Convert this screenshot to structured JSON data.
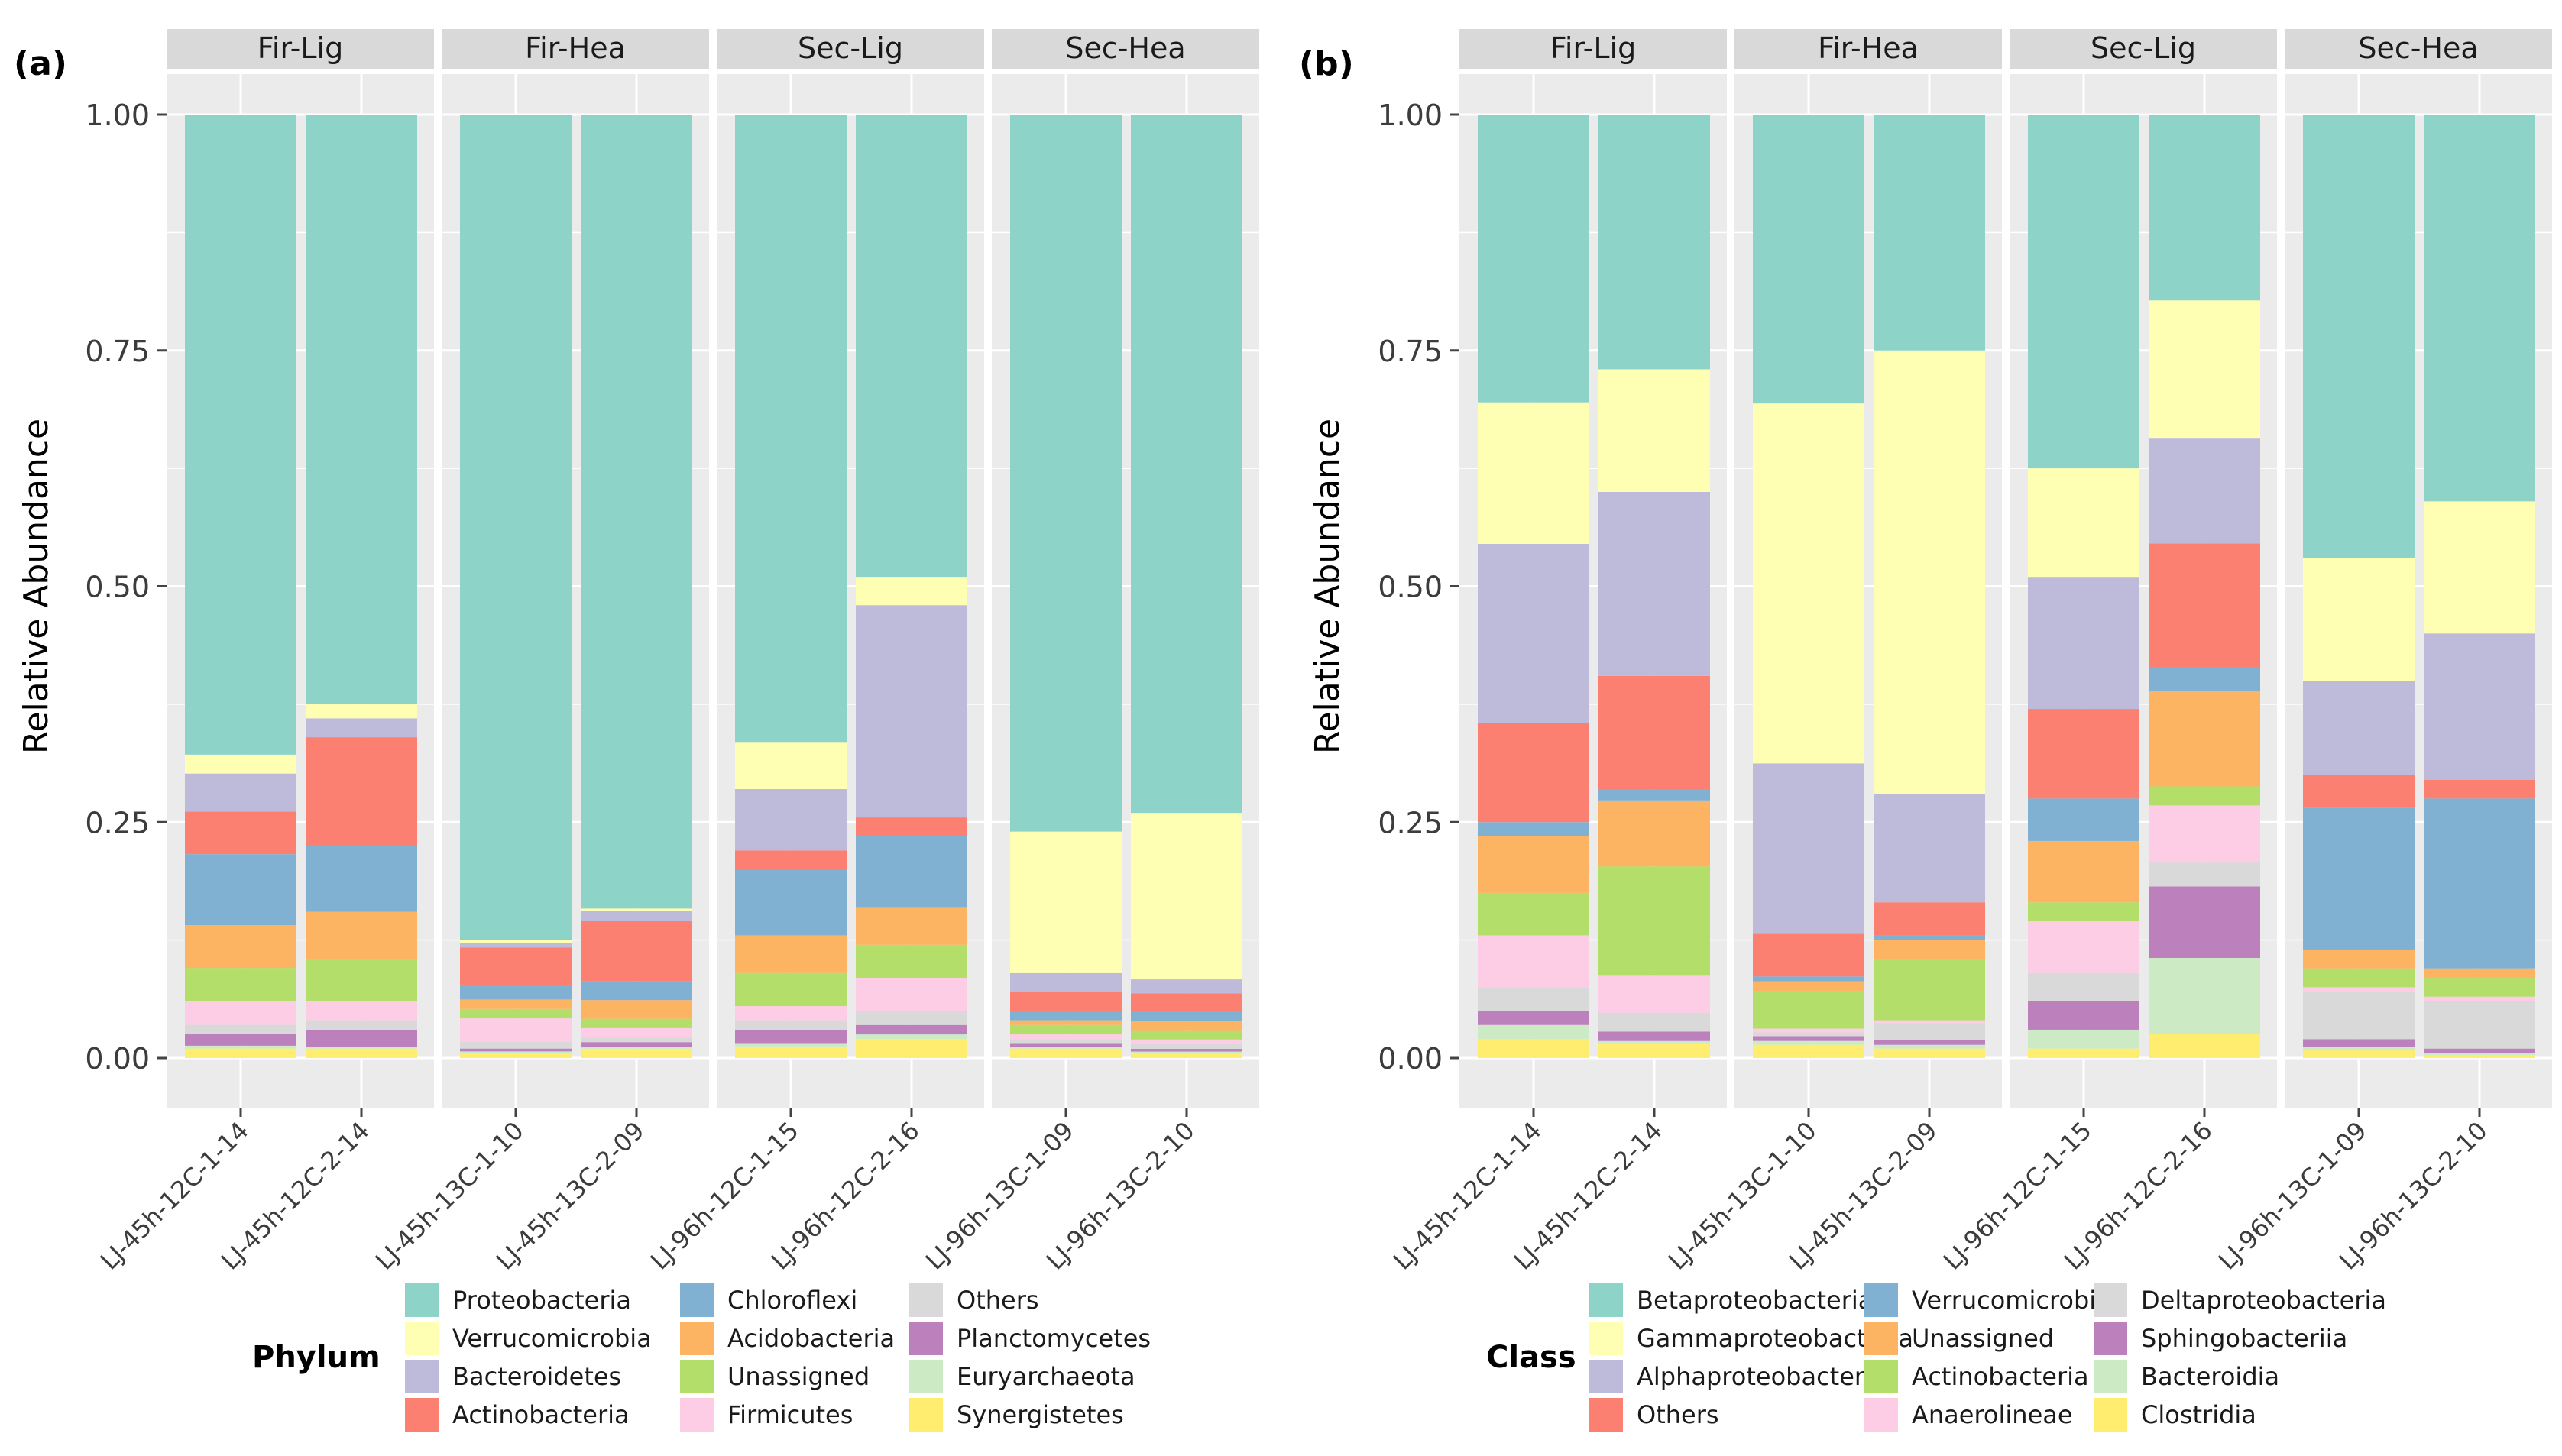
{
  "chart_data": [
    {
      "type": "bar",
      "stacked": true,
      "panel_label": "(a)",
      "ylabel": "Relative Abundance",
      "xlabel": "",
      "ylim": [
        0,
        1
      ],
      "yticks": [
        "0.00",
        "0.25",
        "0.50",
        "0.75",
        "1.00"
      ],
      "facets": [
        "Fir-Lig",
        "Fir-Hea",
        "Sec-Lig",
        "Sec-Hea"
      ],
      "samples": [
        {
          "facet": 0,
          "label": "LJ-45h-12C-1-14"
        },
        {
          "facet": 0,
          "label": "LJ-45h-12C-2-14"
        },
        {
          "facet": 1,
          "label": "LJ-45h-13C-1-10"
        },
        {
          "facet": 1,
          "label": "LJ-45h-13C-2-09"
        },
        {
          "facet": 2,
          "label": "LJ-96h-12C-1-15"
        },
        {
          "facet": 2,
          "label": "LJ-96h-12C-2-16"
        },
        {
          "facet": 3,
          "label": "LJ-96h-13C-1-09"
        },
        {
          "facet": 3,
          "label": "LJ-96h-13C-2-10"
        }
      ],
      "legend_title": "Phylum",
      "series": [
        {
          "name": "Proteobacteria",
          "color": "#8dd3c7",
          "values": [
            0.675,
            0.625,
            0.875,
            0.85,
            0.665,
            0.49,
            0.76,
            0.755
          ]
        },
        {
          "name": "Verrucomicrobia",
          "color": "#ffffb3",
          "values": [
            0.02,
            0.015,
            0.003,
            0.003,
            0.05,
            0.03,
            0.15,
            0.18
          ]
        },
        {
          "name": "Bacteroidetes",
          "color": "#bebada",
          "values": [
            0.04,
            0.02,
            0.005,
            0.01,
            0.065,
            0.225,
            0.02,
            0.015
          ]
        },
        {
          "name": "Actinobacteria",
          "color": "#fb8072",
          "values": [
            0.045,
            0.115,
            0.04,
            0.065,
            0.02,
            0.02,
            0.02,
            0.02
          ]
        },
        {
          "name": "Chloroflexi",
          "color": "#80b1d3",
          "values": [
            0.075,
            0.07,
            0.015,
            0.02,
            0.07,
            0.075,
            0.01,
            0.01
          ]
        },
        {
          "name": "Acidobacteria",
          "color": "#fdb462",
          "values": [
            0.045,
            0.05,
            0.01,
            0.02,
            0.04,
            0.04,
            0.005,
            0.01
          ]
        },
        {
          "name": "Unassigned",
          "color": "#b3de69",
          "values": [
            0.035,
            0.045,
            0.01,
            0.01,
            0.035,
            0.035,
            0.01,
            0.01
          ]
        },
        {
          "name": "Firmicutes",
          "color": "#fccde5",
          "values": [
            0.025,
            0.02,
            0.025,
            0.01,
            0.015,
            0.035,
            0.005,
            0.005
          ]
        },
        {
          "name": "Others",
          "color": "#d9d9d9",
          "values": [
            0.01,
            0.01,
            0.007,
            0.005,
            0.01,
            0.015,
            0.005,
            0.005
          ]
        },
        {
          "name": "Planctomycetes",
          "color": "#bc80bd",
          "values": [
            0.012,
            0.018,
            0.003,
            0.005,
            0.015,
            0.01,
            0.003,
            0.003
          ]
        },
        {
          "name": "Euryarchaeota",
          "color": "#ccebc5",
          "values": [
            0.003,
            0.002,
            0.002,
            0.002,
            0.003,
            0.005,
            0.002,
            0.002
          ]
        },
        {
          "name": "Synergistetes",
          "color": "#ffed6f",
          "values": [
            0.01,
            0.01,
            0.005,
            0.01,
            0.012,
            0.02,
            0.01,
            0.005
          ]
        }
      ]
    },
    {
      "type": "bar",
      "stacked": true,
      "panel_label": "(b)",
      "ylabel": "Relative Abundance",
      "xlabel": "",
      "ylim": [
        0,
        1
      ],
      "yticks": [
        "0.00",
        "0.25",
        "0.50",
        "0.75",
        "1.00"
      ],
      "facets": [
        "Fir-Lig",
        "Fir-Hea",
        "Sec-Lig",
        "Sec-Hea"
      ],
      "samples": [
        {
          "facet": 0,
          "label": "LJ-45h-12C-1-14"
        },
        {
          "facet": 0,
          "label": "LJ-45h-12C-2-14"
        },
        {
          "facet": 1,
          "label": "LJ-45h-13C-1-10"
        },
        {
          "facet": 1,
          "label": "LJ-45h-13C-2-09"
        },
        {
          "facet": 2,
          "label": "LJ-96h-12C-1-15"
        },
        {
          "facet": 2,
          "label": "LJ-96h-12C-2-16"
        },
        {
          "facet": 3,
          "label": "LJ-96h-13C-1-09"
        },
        {
          "facet": 3,
          "label": "LJ-96h-13C-2-10"
        }
      ],
      "legend_title": "Class",
      "series": [
        {
          "name": "Betaproteobacteria",
          "color": "#8dd3c7",
          "values": [
            0.305,
            0.27,
            0.305,
            0.25,
            0.375,
            0.195,
            0.47,
            0.41
          ]
        },
        {
          "name": "Gammaproteobacteria",
          "color": "#ffffb3",
          "values": [
            0.15,
            0.13,
            0.38,
            0.47,
            0.115,
            0.145,
            0.13,
            0.14
          ]
        },
        {
          "name": "Alphaproteobacteria",
          "color": "#bebada",
          "values": [
            0.19,
            0.195,
            0.18,
            0.115,
            0.14,
            0.11,
            0.1,
            0.155
          ]
        },
        {
          "name": "Others",
          "color": "#fb8072",
          "values": [
            0.105,
            0.12,
            0.045,
            0.035,
            0.095,
            0.13,
            0.035,
            0.02
          ]
        },
        {
          "name": "Verrucomicrobiae",
          "color": "#80b1d3",
          "values": [
            0.015,
            0.012,
            0.005,
            0.005,
            0.045,
            0.025,
            0.15,
            0.18
          ]
        },
        {
          "name": "Unassigned",
          "color": "#fdb462",
          "values": [
            0.06,
            0.07,
            0.01,
            0.02,
            0.065,
            0.1,
            0.02,
            0.01
          ]
        },
        {
          "name": "Actinobacteria",
          "color": "#b3de69",
          "values": [
            0.045,
            0.115,
            0.04,
            0.065,
            0.02,
            0.02,
            0.02,
            0.02
          ]
        },
        {
          "name": "Anaerolineae",
          "color": "#fccde5",
          "values": [
            0.055,
            0.04,
            0.004,
            0.003,
            0.055,
            0.06,
            0.005,
            0.005
          ]
        },
        {
          "name": "Deltaproteobacteria",
          "color": "#d9d9d9",
          "values": [
            0.025,
            0.02,
            0.004,
            0.018,
            0.03,
            0.025,
            0.05,
            0.05
          ]
        },
        {
          "name": "Sphingobacteriia",
          "color": "#bc80bd",
          "values": [
            0.015,
            0.01,
            0.005,
            0.005,
            0.03,
            0.075,
            0.008,
            0.005
          ]
        },
        {
          "name": "Bacteroidia",
          "color": "#ccebc5",
          "values": [
            0.015,
            0.003,
            0.004,
            0.004,
            0.02,
            0.08,
            0.004,
            0.002
          ]
        },
        {
          "name": "Clostridia",
          "color": "#ffed6f",
          "values": [
            0.02,
            0.015,
            0.014,
            0.01,
            0.01,
            0.025,
            0.008,
            0.003
          ]
        }
      ]
    }
  ]
}
